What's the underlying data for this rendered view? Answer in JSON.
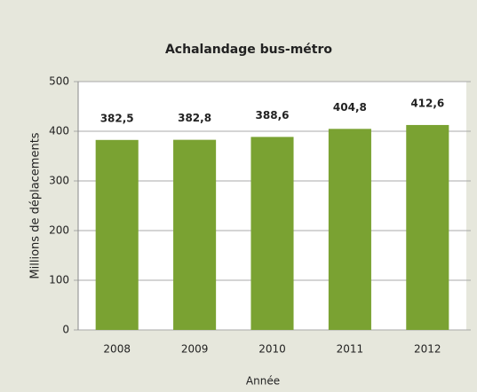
{
  "chart_data": {
    "type": "bar",
    "title": "Achalandage bus-métro",
    "x_label": "Année",
    "y_label": "Millions de déplacements",
    "categories": [
      "2008",
      "2009",
      "2010",
      "2011",
      "2012"
    ],
    "values": [
      382.5,
      382.8,
      388.6,
      404.8,
      412.6
    ],
    "value_labels": [
      "382,5",
      "382,8",
      "388,6",
      "404,8",
      "412,6"
    ],
    "color": "#7aa232",
    "ylim": [
      0,
      500
    ],
    "yticks": [
      0,
      100,
      200,
      300,
      400,
      500
    ],
    "grid": true
  }
}
